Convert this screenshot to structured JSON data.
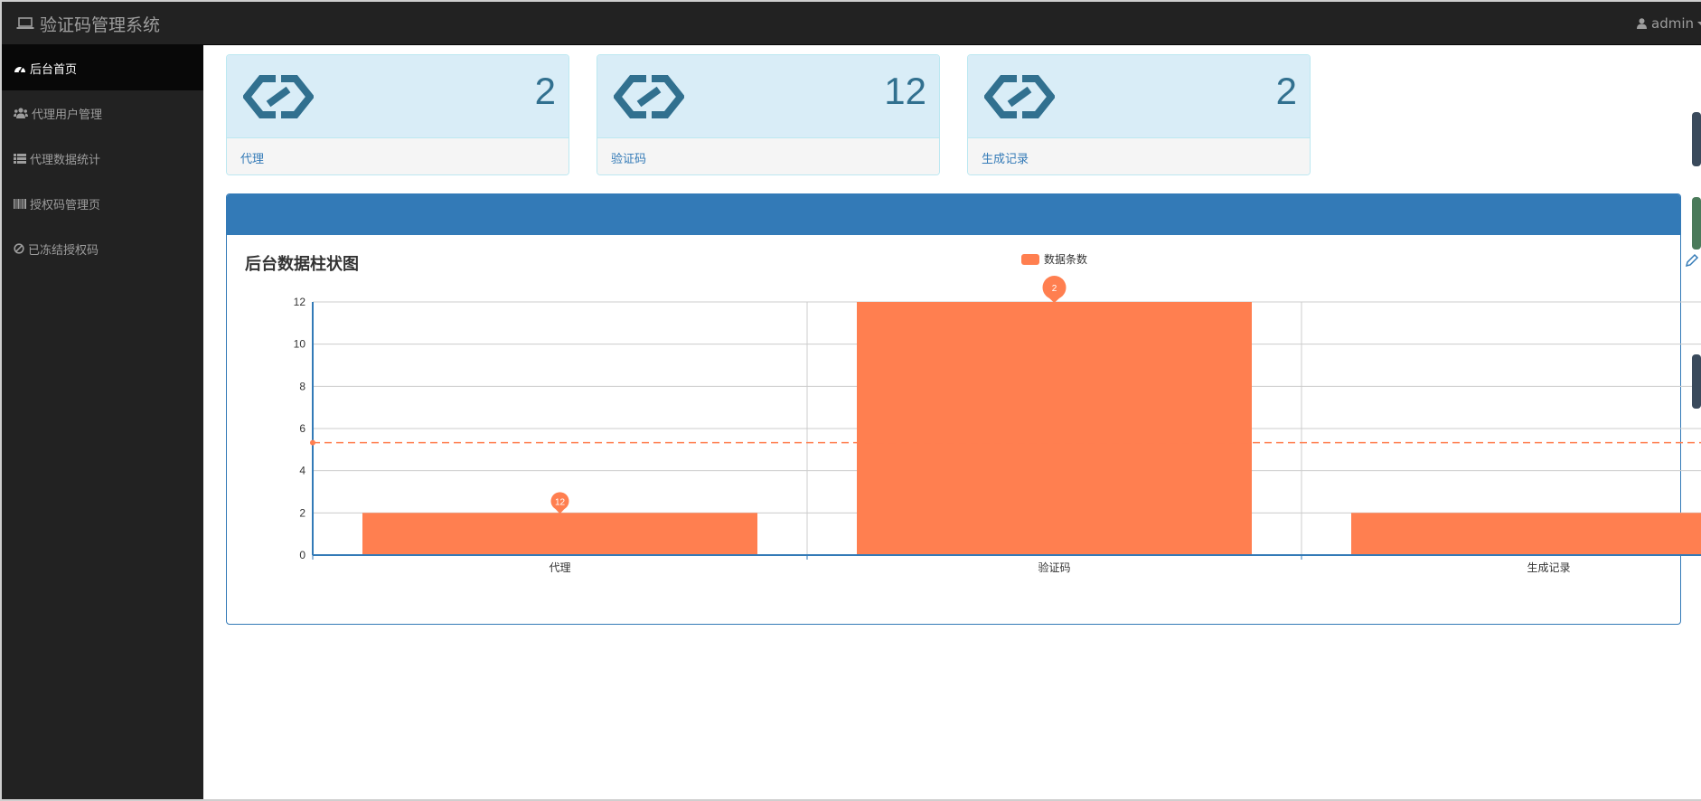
{
  "app": {
    "title": "验证码管理系统",
    "user": "admin"
  },
  "sidebar": {
    "items": [
      {
        "label": "后台首页",
        "icon": "dashboard-icon",
        "active": true
      },
      {
        "label": "代理用户管理",
        "icon": "users-icon",
        "active": false
      },
      {
        "label": "代理数据统计",
        "icon": "list-icon",
        "active": false
      },
      {
        "label": "授权码管理页",
        "icon": "barcode-icon",
        "active": false
      },
      {
        "label": "已冻结授权码",
        "icon": "ban-icon",
        "active": false
      }
    ]
  },
  "cards": [
    {
      "count": "2",
      "label": "代理",
      "icon": "link-icon"
    },
    {
      "count": "12",
      "label": "验证码",
      "icon": "link-icon"
    },
    {
      "count": "2",
      "label": "生成记录",
      "icon": "link-icon"
    }
  ],
  "colors": {
    "navbar": "#222222",
    "primary": "#337ab7",
    "card_bg": "#d9edf7",
    "card_text": "#31708f",
    "bar": "#ff7f50"
  },
  "chart_data": {
    "type": "bar",
    "title": "后台数据柱状图",
    "legend": "top-center",
    "categories": [
      "代理",
      "验证码",
      "生成记录"
    ],
    "series": [
      {
        "name": "数据条数",
        "values": [
          2,
          12,
          2
        ],
        "color": "#ff7f50"
      }
    ],
    "data_labels": [
      "2",
      "12"
    ],
    "mark_line": {
      "type": "average",
      "value": 5.33
    },
    "ylim": [
      0,
      12
    ],
    "yticks": [
      "0",
      "2",
      "4",
      "6",
      "8",
      "10",
      "12"
    ],
    "grid": true
  }
}
